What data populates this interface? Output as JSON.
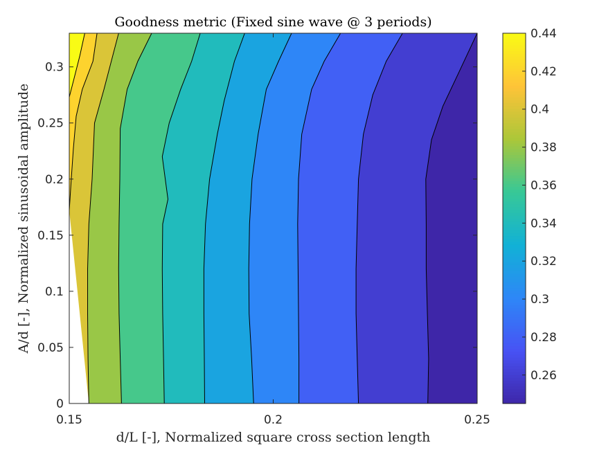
{
  "chart_data": {
    "type": "contour",
    "title": "Goodness metric (Fixed sine wave @ 3 periods)",
    "xlabel": "d/L [-], Normalized square cross section length",
    "ylabel": "A/d [-], Normalized sinusoidal amplitude",
    "xlim": [
      0.15,
      0.25
    ],
    "ylim": [
      0,
      0.33
    ],
    "x_ticks": [
      0.15,
      0.2,
      0.25
    ],
    "x_tick_labels": [
      "0.15",
      "0.2",
      "0.25"
    ],
    "y_ticks": [
      0,
      0.05,
      0.1,
      0.15,
      0.2,
      0.25,
      0.3
    ],
    "y_tick_labels": [
      "0",
      "0.05",
      "0.1",
      "0.15",
      "0.2",
      "0.25",
      "0.3"
    ],
    "colorbar": {
      "clim": [
        0.245,
        0.44
      ],
      "ticks": [
        0.26,
        0.28,
        0.3,
        0.32,
        0.34,
        0.36,
        0.38,
        0.4,
        0.42,
        0.44
      ],
      "tick_labels": [
        "0.26",
        "0.28",
        "0.3",
        "0.32",
        "0.34",
        "0.36",
        "0.38",
        "0.4",
        "0.42",
        "0.44"
      ],
      "colormap": "parula"
    },
    "contour_levels": [
      0.25,
      0.27,
      0.29,
      0.31,
      0.33,
      0.35,
      0.37,
      0.39,
      0.41,
      0.43
    ],
    "contour_lines": [
      {
        "level": 0.43,
        "points": [
          [
            0.15,
            0.273
          ],
          [
            0.1512,
            0.29
          ],
          [
            0.1526,
            0.31
          ],
          [
            0.1538,
            0.33
          ]
        ]
      },
      {
        "level": 0.41,
        "points": [
          [
            0.15,
            0.172
          ],
          [
            0.1505,
            0.2
          ],
          [
            0.151,
            0.227
          ],
          [
            0.1517,
            0.256
          ],
          [
            0.1532,
            0.28
          ],
          [
            0.1558,
            0.305
          ],
          [
            0.1568,
            0.33
          ]
        ]
      },
      {
        "level": 0.39,
        "points": [
          [
            0.1548,
            0
          ],
          [
            0.1546,
            0.04
          ],
          [
            0.1545,
            0.08
          ],
          [
            0.1545,
            0.12
          ],
          [
            0.1548,
            0.16
          ],
          [
            0.1556,
            0.2
          ],
          [
            0.1562,
            0.25
          ],
          [
            0.1585,
            0.28
          ],
          [
            0.1603,
            0.305
          ],
          [
            0.1621,
            0.33
          ]
        ]
      },
      {
        "level": 0.37,
        "points": [
          [
            0.1628,
            0
          ],
          [
            0.1625,
            0.04
          ],
          [
            0.1622,
            0.08
          ],
          [
            0.1621,
            0.12
          ],
          [
            0.1622,
            0.16
          ],
          [
            0.1624,
            0.2
          ],
          [
            0.1625,
            0.245
          ],
          [
            0.1642,
            0.28
          ],
          [
            0.1668,
            0.305
          ],
          [
            0.1702,
            0.33
          ]
        ]
      },
      {
        "level": 0.35,
        "points": [
          [
            0.1733,
            0
          ],
          [
            0.1731,
            0.04
          ],
          [
            0.1729,
            0.08
          ],
          [
            0.1728,
            0.12
          ],
          [
            0.1729,
            0.16
          ],
          [
            0.1742,
            0.182
          ],
          [
            0.1728,
            0.22
          ],
          [
            0.1745,
            0.25
          ],
          [
            0.1773,
            0.28
          ],
          [
            0.18,
            0.305
          ],
          [
            0.1821,
            0.33
          ]
        ]
      },
      {
        "level": 0.33,
        "points": [
          [
            0.1832,
            0
          ],
          [
            0.1831,
            0.04
          ],
          [
            0.183,
            0.08
          ],
          [
            0.183,
            0.12
          ],
          [
            0.1834,
            0.16
          ],
          [
            0.1844,
            0.2
          ],
          [
            0.1863,
            0.24
          ],
          [
            0.188,
            0.27
          ],
          [
            0.1905,
            0.305
          ],
          [
            0.193,
            0.33
          ]
        ]
      },
      {
        "level": 0.31,
        "points": [
          [
            0.1952,
            0
          ],
          [
            0.1947,
            0.04
          ],
          [
            0.1941,
            0.08
          ],
          [
            0.194,
            0.12
          ],
          [
            0.1942,
            0.16
          ],
          [
            0.1948,
            0.2
          ],
          [
            0.1963,
            0.24
          ],
          [
            0.1983,
            0.28
          ],
          [
            0.2013,
            0.305
          ],
          [
            0.2045,
            0.33
          ]
        ]
      },
      {
        "level": 0.29,
        "points": [
          [
            0.2063,
            0
          ],
          [
            0.2063,
            0.04
          ],
          [
            0.2062,
            0.08
          ],
          [
            0.2061,
            0.12
          ],
          [
            0.206,
            0.16
          ],
          [
            0.2062,
            0.2
          ],
          [
            0.207,
            0.24
          ],
          [
            0.2094,
            0.28
          ],
          [
            0.2125,
            0.305
          ],
          [
            0.2165,
            0.33
          ]
        ]
      },
      {
        "level": 0.27,
        "points": [
          [
            0.2209,
            0
          ],
          [
            0.2206,
            0.04
          ],
          [
            0.2203,
            0.08
          ],
          [
            0.2203,
            0.12
          ],
          [
            0.2206,
            0.16
          ],
          [
            0.2209,
            0.2
          ],
          [
            0.2221,
            0.24
          ],
          [
            0.2244,
            0.275
          ],
          [
            0.2277,
            0.305
          ],
          [
            0.2317,
            0.33
          ]
        ]
      },
      {
        "level": 0.25,
        "points": [
          [
            0.2379,
            0
          ],
          [
            0.2381,
            0.04
          ],
          [
            0.2378,
            0.08
          ],
          [
            0.2375,
            0.12
          ],
          [
            0.2375,
            0.16
          ],
          [
            0.2374,
            0.2
          ],
          [
            0.2388,
            0.235
          ],
          [
            0.2416,
            0.265
          ],
          [
            0.2455,
            0.295
          ],
          [
            0.25,
            0.33
          ]
        ]
      }
    ]
  }
}
